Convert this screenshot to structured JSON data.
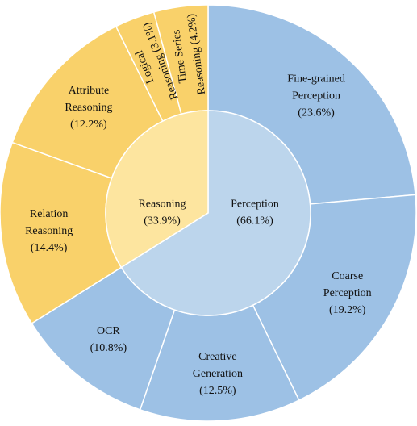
{
  "chart_data": {
    "type": "pie",
    "subtype": "sunburst",
    "title": "",
    "colors": {
      "perception_inner": "#bcd5ec",
      "perception_outer": "#9dc1e5",
      "reasoning_inner": "#fde59f",
      "reasoning_outer": "#f9d16a",
      "stroke": "#ffffff"
    },
    "inner": [
      {
        "label": "Perception",
        "value": 66.1,
        "pct": "(66.1%)",
        "group": "perception"
      },
      {
        "label": "Reasoning",
        "value": 33.9,
        "pct": "(33.9%)",
        "group": "reasoning"
      }
    ],
    "outer": [
      {
        "lines": [
          "Fine-grained",
          "Perception"
        ],
        "value": 23.6,
        "pct": "(23.6%)",
        "group": "perception"
      },
      {
        "lines": [
          "Coarse",
          "Perception"
        ],
        "value": 19.2,
        "pct": "(19.2%)",
        "group": "perception"
      },
      {
        "lines": [
          "Creative",
          "Generation"
        ],
        "value": 12.5,
        "pct": "(12.5%)",
        "group": "perception"
      },
      {
        "lines": [
          "OCR"
        ],
        "value": 10.8,
        "pct": "(10.8%)",
        "group": "perception"
      },
      {
        "lines": [
          "Relation",
          "Reasoning"
        ],
        "value": 14.4,
        "pct": "(14.4%)",
        "group": "reasoning"
      },
      {
        "lines": [
          "Attribute",
          "Reasoning"
        ],
        "value": 12.2,
        "pct": "(12.2%)",
        "group": "reasoning"
      },
      {
        "lines": [
          "Logical",
          "Reasoning (3.1%)"
        ],
        "value": 3.1,
        "pct": "",
        "group": "reasoning",
        "rotated": true
      },
      {
        "lines": [
          "Time Series",
          "Reasoning (4.2%)"
        ],
        "value": 4.2,
        "pct": "",
        "group": "reasoning",
        "rotated": true
      }
    ]
  }
}
